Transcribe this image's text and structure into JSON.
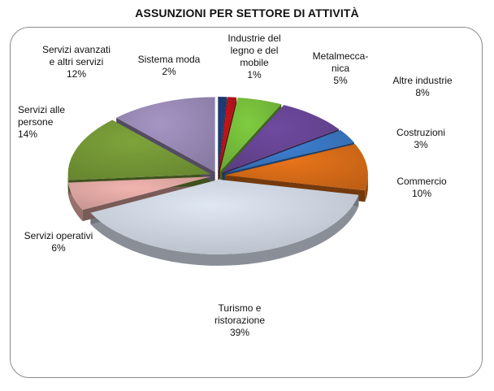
{
  "chart_data": {
    "type": "pie",
    "title": "ASSUNZIONI PER SETTORE DI ATTIVITÀ",
    "slices": [
      {
        "name": "Industrie del legno e del mobile",
        "value": 1,
        "label_lines": [
          "Industrie del",
          "legno e del",
          "mobile"
        ],
        "label": "1%",
        "color": "#1f3f7a"
      },
      {
        "name": "Metalmeccanica",
        "value": 5,
        "label_lines": [
          "Metalmecca-",
          "nica"
        ],
        "label": "5%",
        "color": "#c2151b"
      },
      {
        "name": "Altre industrie",
        "value": 8,
        "label_lines": [
          "Altre industrie"
        ],
        "label": "8%",
        "color": "#7fbf3f"
      },
      {
        "name": "Costruzioni",
        "value": 3,
        "label_lines": [
          "Costruzioni"
        ],
        "label": "3%",
        "color": "#6f4aa0"
      },
      {
        "name": "Commercio",
        "value": 10,
        "label_lines": [
          "Commercio"
        ],
        "label": "10%",
        "color": "#3d7fd0"
      },
      {
        "name": "Turismo e ristorazione",
        "value": 39,
        "label_lines": [
          "Turismo e",
          "ristorazione"
        ],
        "label": "39%",
        "color": "#e8741a"
      },
      {
        "name": "Servizi operativi",
        "value": 6,
        "label_lines": [
          "Servizi operativi"
        ],
        "label": "6%",
        "color": "#dde6f2"
      },
      {
        "name": "Servizi alle persone",
        "value": 14,
        "label_lines": [
          "Servizi alle",
          "persone"
        ],
        "label": "14%",
        "color": "#f2b5b0"
      },
      {
        "name": "Servizi avanzati e altri servizi",
        "value": 12,
        "label_lines": [
          "Servizi avanzati",
          "e altri servizi"
        ],
        "label": "12%",
        "color": "#7ea33a"
      },
      {
        "name": "Sistema moda",
        "value": 2,
        "label_lines": [
          "Sistema moda"
        ],
        "label": "2%",
        "color": "#9a8ab8"
      }
    ]
  }
}
